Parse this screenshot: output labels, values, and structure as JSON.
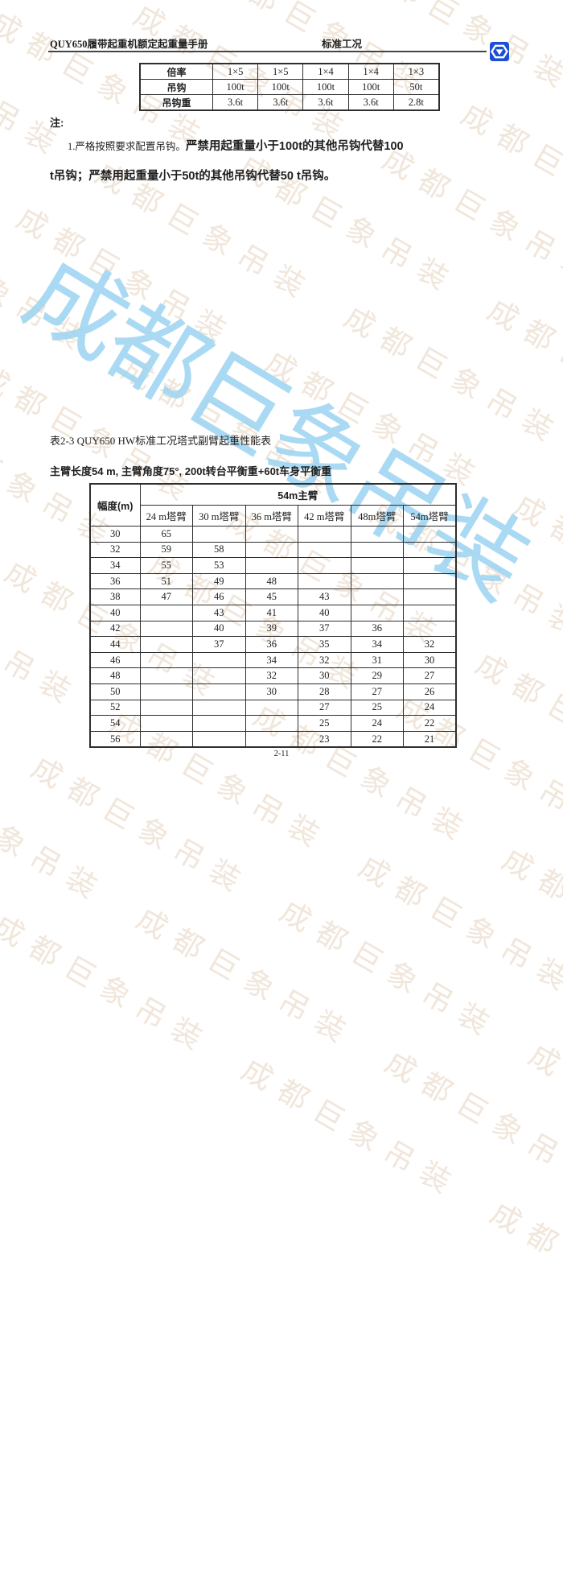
{
  "header": {
    "manual_title": "QUY650履带起重机额定起重量手册",
    "section": "标准工况",
    "logo_color": "#1b4fd6"
  },
  "watermark": {
    "text": "成都巨象吊装",
    "tile_color": "#f1e6db",
    "accent_color": "#9cd4f2"
  },
  "hook_table": {
    "rows": [
      {
        "label": "倍率",
        "values": [
          "1×5",
          "1×5",
          "1×4",
          "1×4",
          "1×3"
        ]
      },
      {
        "label": "吊钩",
        "values": [
          "100t",
          "100t",
          "100t",
          "100t",
          "50t"
        ]
      },
      {
        "label": "吊钩重",
        "values": [
          "3.6t",
          "3.6t",
          "3.6t",
          "3.6t",
          "2.8t"
        ]
      }
    ]
  },
  "notes": {
    "heading": "注:",
    "line1_normal": "1.严格按照要求配置吊钩。",
    "line1_bold": "严禁用起重量小于100t的其他吊钩代替100",
    "line2_bold": "t吊钩；严禁用起重量小于50t的其他吊钩代替50 t吊钩。"
  },
  "capacity_table": {
    "title": "表2-3 QUY650 HW标准工况塔式副臂起重性能表",
    "conditions": "主臂长度54 m, 主臂角度75°, 200t转台平衡重+60t车身平衡重",
    "col1_header": "幅度(m)",
    "span_header": "54m主臂",
    "sub_headers": [
      "24 m塔臂",
      "30 m塔臂",
      "36 m塔臂",
      "42 m塔臂",
      "48m塔臂",
      "54m塔臂"
    ],
    "rows": [
      {
        "radius": "30",
        "values": [
          "65",
          "",
          "",
          "",
          "",
          ""
        ]
      },
      {
        "radius": "32",
        "values": [
          "59",
          "58",
          "",
          "",
          "",
          ""
        ]
      },
      {
        "radius": "34",
        "values": [
          "55",
          "53",
          "",
          "",
          "",
          ""
        ]
      },
      {
        "radius": "36",
        "values": [
          "51",
          "49",
          "48",
          "",
          "",
          ""
        ]
      },
      {
        "radius": "38",
        "values": [
          "47",
          "46",
          "45",
          "43",
          "",
          ""
        ]
      },
      {
        "radius": "40",
        "values": [
          "",
          "43",
          "41",
          "40",
          "",
          ""
        ]
      },
      {
        "radius": "42",
        "values": [
          "",
          "40",
          "39",
          "37",
          "36",
          ""
        ]
      },
      {
        "radius": "44",
        "values": [
          "",
          "37",
          "36",
          "35",
          "34",
          "32"
        ]
      },
      {
        "radius": "46",
        "values": [
          "",
          "",
          "34",
          "32",
          "31",
          "30"
        ]
      },
      {
        "radius": "48",
        "values": [
          "",
          "",
          "32",
          "30",
          "29",
          "27"
        ]
      },
      {
        "radius": "50",
        "values": [
          "",
          "",
          "30",
          "28",
          "27",
          "26"
        ]
      },
      {
        "radius": "52",
        "values": [
          "",
          "",
          "",
          "27",
          "25",
          "24"
        ]
      },
      {
        "radius": "54",
        "values": [
          "",
          "",
          "",
          "25",
          "24",
          "22"
        ]
      },
      {
        "radius": "56",
        "values": [
          "",
          "",
          "",
          "23",
          "22",
          "21"
        ]
      }
    ]
  },
  "footer": {
    "page_number": "2-11"
  }
}
